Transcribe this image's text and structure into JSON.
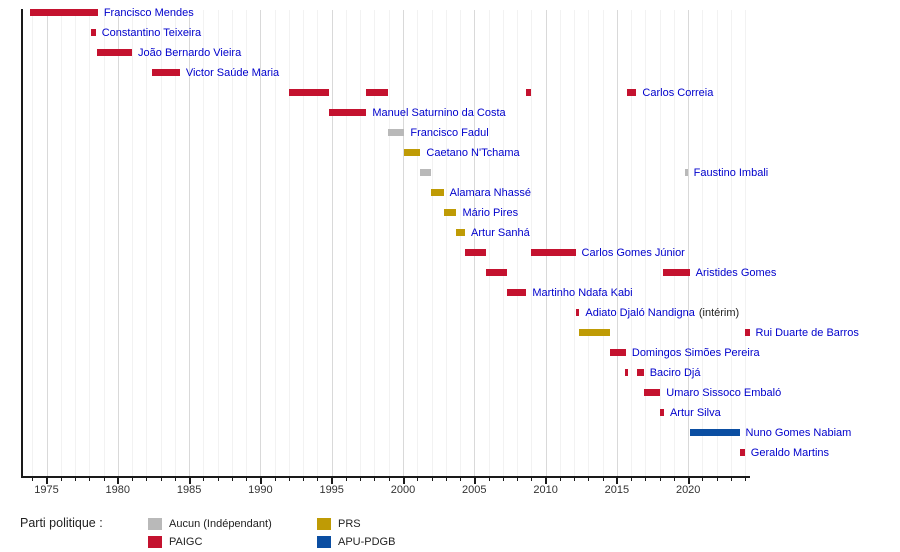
{
  "chart_data": {
    "type": "gantt",
    "axis": {
      "unit": "year",
      "start": 1973.3,
      "end": 2024.35,
      "major_ticks": [
        1975,
        1980,
        1985,
        1990,
        1995,
        2000,
        2005,
        2010,
        2015,
        2020
      ],
      "minor_tick_step": 1,
      "grid": true
    },
    "legend_title": "Parti politique :",
    "parties": [
      {
        "id": "aucun",
        "label": "Aucun (Indépendant)",
        "color": "#b9b9b9"
      },
      {
        "id": "paigc",
        "label": "PAIGC",
        "color": "#c4122f"
      },
      {
        "id": "prs",
        "label": "PRS",
        "color": "#bf9b05"
      },
      {
        "id": "apu-pdgb",
        "label": "APU-PDGB",
        "color": "#0b4ea2"
      }
    ],
    "rows": [
      {
        "name": "Francisco Mendes",
        "terms": [
          {
            "start": 1973.85,
            "end": 1978.6,
            "party": "paigc"
          }
        ]
      },
      {
        "name": "Constantino Teixeira",
        "terms": [
          {
            "start": 1978.15,
            "end": 1978.45,
            "party": "paigc"
          }
        ]
      },
      {
        "name": "João Bernardo Vieira",
        "terms": [
          {
            "start": 1978.55,
            "end": 1981.0,
            "party": "paigc"
          }
        ]
      },
      {
        "name": "Victor Saúde Maria",
        "terms": [
          {
            "start": 1982.4,
            "end": 1984.35,
            "party": "paigc"
          }
        ]
      },
      {
        "name": "Carlos Correia",
        "terms": [
          {
            "start": 1992.0,
            "end": 1994.82,
            "party": "paigc"
          },
          {
            "start": 1997.43,
            "end": 1998.92,
            "party": "paigc"
          },
          {
            "start": 2008.6,
            "end": 2009.0,
            "party": "paigc"
          },
          {
            "start": 2015.7,
            "end": 2016.37,
            "party": "paigc"
          }
        ]
      },
      {
        "name": "Manuel Saturnino da Costa",
        "terms": [
          {
            "start": 1994.82,
            "end": 1997.43,
            "party": "paigc"
          }
        ]
      },
      {
        "name": "Francisco Fadul",
        "terms": [
          {
            "start": 1998.92,
            "end": 2000.1,
            "party": "aucun"
          }
        ]
      },
      {
        "name": "Caetano N'Tchama",
        "terms": [
          {
            "start": 2000.1,
            "end": 2001.22,
            "party": "prs"
          }
        ]
      },
      {
        "name": "Faustino Imbali",
        "terms": [
          {
            "start": 2001.22,
            "end": 2001.94,
            "party": "aucun"
          },
          {
            "start": 2019.75,
            "end": 2019.88,
            "party": "aucun"
          }
        ]
      },
      {
        "name": "Alamara Nhassé",
        "terms": [
          {
            "start": 2001.94,
            "end": 2002.85,
            "party": "prs"
          }
        ]
      },
      {
        "name": "Mário Pires",
        "terms": [
          {
            "start": 2002.85,
            "end": 2003.75,
            "party": "prs"
          }
        ]
      },
      {
        "name": "Artur Sanhá",
        "terms": [
          {
            "start": 2003.75,
            "end": 2004.35,
            "party": "prs"
          }
        ]
      },
      {
        "name": "Carlos Gomes Júnior",
        "terms": [
          {
            "start": 2004.35,
            "end": 2005.85,
            "party": "paigc"
          },
          {
            "start": 2009.0,
            "end": 2012.1,
            "party": "paigc"
          }
        ]
      },
      {
        "name": "Aristides Gomes",
        "terms": [
          {
            "start": 2005.85,
            "end": 2007.3,
            "party": "paigc"
          },
          {
            "start": 2018.2,
            "end": 2020.1,
            "party": "paigc"
          }
        ]
      },
      {
        "name": "Martinho Ndafa Kabi",
        "terms": [
          {
            "start": 2007.3,
            "end": 2008.65,
            "party": "paigc"
          }
        ]
      },
      {
        "name": "Adiato Djaló Nandigna",
        "suffix": "(intérim)",
        "terms": [
          {
            "start": 2012.1,
            "end": 2012.37,
            "party": "paigc"
          }
        ]
      },
      {
        "name": "Rui Duarte de Barros",
        "terms": [
          {
            "start": 2012.37,
            "end": 2014.52,
            "party": "prs"
          },
          {
            "start": 2023.97,
            "end": 2024.3,
            "party": "paigc"
          }
        ]
      },
      {
        "name": "Domingos Simões Pereira",
        "terms": [
          {
            "start": 2014.52,
            "end": 2015.63,
            "party": "paigc"
          }
        ]
      },
      {
        "name": "Baciro Djá",
        "terms": [
          {
            "start": 2015.58,
            "end": 2015.73,
            "party": "paigc"
          },
          {
            "start": 2016.4,
            "end": 2016.88,
            "party": "paigc"
          }
        ]
      },
      {
        "name": "Umaro Sissoco Embaló",
        "terms": [
          {
            "start": 2016.88,
            "end": 2018.04,
            "party": "paigc"
          }
        ]
      },
      {
        "name": "Artur Silva",
        "terms": [
          {
            "start": 2018.04,
            "end": 2018.3,
            "party": "paigc"
          }
        ]
      },
      {
        "name": "Nuno Gomes Nabiam",
        "terms": [
          {
            "start": 2020.16,
            "end": 2023.6,
            "party": "apu-pdgb"
          }
        ]
      },
      {
        "name": "Geraldo Martins",
        "terms": [
          {
            "start": 2023.6,
            "end": 2023.97,
            "party": "paigc"
          }
        ]
      }
    ]
  },
  "colors": {
    "label_link": "#0000cc",
    "suffix_text": "#222222",
    "axis": "#1a1a1a",
    "tick_label": "#333333",
    "grid_minor": "#f2f2f2",
    "grid_major": "#d9d9d9",
    "background": "#ffffff"
  }
}
